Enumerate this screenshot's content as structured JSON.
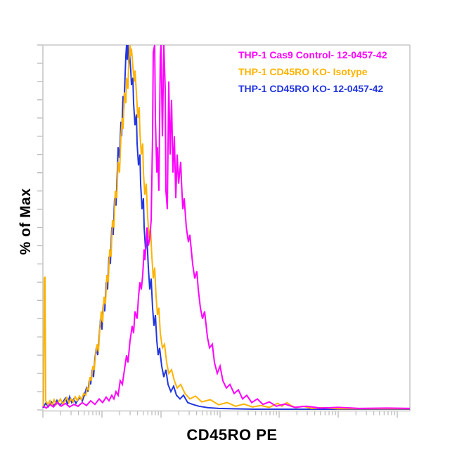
{
  "legend": {
    "entries": [
      {
        "label": "THP-1 Cas9 Control- 12-0457-42",
        "color": "#FF00FF"
      },
      {
        "label": "THP-1 CD45RO KO- Isotype",
        "color": "#FFB300"
      },
      {
        "label": "THP-1 CD45RO KO- 12-0457-42",
        "color": "#2336E0"
      }
    ]
  },
  "chart_data": {
    "type": "line",
    "subtype": "flow-cytometry-overlay-histogram",
    "title": "",
    "xlabel": "CD45RO PE",
    "ylabel": "% of Max",
    "x_axis": {
      "scale": "log",
      "visible_decades": 6.214,
      "tick_labels_shown": false,
      "note": "unlabeled log axis; point x-units are pixels from axis origin, one decade = 84 units"
    },
    "y_axis": {
      "min": 0,
      "max": 100,
      "tick_count": 21,
      "tick_labels_shown": false,
      "units": "% of Max"
    },
    "grid": false,
    "legend_position": "top-right-inside",
    "axis_color": "#c8c8c8",
    "tick_color": "#bdbdbd",
    "series": [
      {
        "name": "THP-1 CD45RO KO- 12-0457-42",
        "color": "#2336E0",
        "points": [
          [
            0,
            0.6
          ],
          [
            4,
            1.8
          ],
          [
            8,
            0.9
          ],
          [
            12,
            2.2
          ],
          [
            16,
            1.1
          ],
          [
            20,
            2.6
          ],
          [
            24,
            1.3
          ],
          [
            28,
            2.0
          ],
          [
            32,
            3.2
          ],
          [
            35,
            1.6
          ],
          [
            38,
            3.6
          ],
          [
            41,
            2.0
          ],
          [
            44,
            3.0
          ],
          [
            47,
            1.8
          ],
          [
            50,
            2.8
          ],
          [
            53,
            3.4
          ],
          [
            56,
            2.4
          ],
          [
            59,
            4
          ],
          [
            62,
            6
          ],
          [
            64,
            5
          ],
          [
            66,
            8
          ],
          [
            68,
            7
          ],
          [
            70,
            11
          ],
          [
            72,
            9
          ],
          [
            74,
            14
          ],
          [
            76,
            17
          ],
          [
            78,
            15
          ],
          [
            80,
            20
          ],
          [
            82,
            25
          ],
          [
            84,
            22
          ],
          [
            86,
            29
          ],
          [
            88,
            27
          ],
          [
            90,
            35
          ],
          [
            92,
            33
          ],
          [
            94,
            42
          ],
          [
            96,
            40
          ],
          [
            98,
            50
          ],
          [
            100,
            48
          ],
          [
            102,
            58
          ],
          [
            104,
            56
          ],
          [
            106,
            66
          ],
          [
            107,
            72
          ],
          [
            109,
            69
          ],
          [
            111,
            79
          ],
          [
            112,
            75
          ],
          [
            114,
            86
          ],
          [
            115,
            82
          ],
          [
            117,
            92
          ],
          [
            118,
            97
          ],
          [
            119,
            100
          ],
          [
            120,
            96
          ],
          [
            121,
            100
          ],
          [
            122,
            95
          ],
          [
            123,
            98
          ],
          [
            125,
            93
          ],
          [
            126,
            89
          ],
          [
            128,
            91
          ],
          [
            129,
            84
          ],
          [
            131,
            78
          ],
          [
            133,
            81
          ],
          [
            134,
            73
          ],
          [
            136,
            67
          ],
          [
            138,
            70
          ],
          [
            139,
            62
          ],
          [
            141,
            55
          ],
          [
            143,
            58
          ],
          [
            144,
            50
          ],
          [
            146,
            44
          ],
          [
            148,
            47
          ],
          [
            150,
            39
          ],
          [
            152,
            33
          ],
          [
            154,
            36
          ],
          [
            156,
            28
          ],
          [
            158,
            23
          ],
          [
            160,
            26
          ],
          [
            162,
            19
          ],
          [
            164,
            15
          ],
          [
            166,
            17
          ],
          [
            169,
            12
          ],
          [
            172,
            9
          ],
          [
            175,
            11
          ],
          [
            178,
            7
          ],
          [
            182,
            5
          ],
          [
            186,
            6.5
          ],
          [
            190,
            4
          ],
          [
            195,
            3
          ],
          [
            200,
            4
          ],
          [
            206,
            2
          ],
          [
            213,
            1.5
          ],
          [
            222,
            1
          ],
          [
            235,
            0.6
          ],
          [
            250,
            0.4
          ],
          [
            270,
            0.3
          ],
          [
            300,
            0.2
          ],
          [
            522,
            0.2
          ]
        ]
      },
      {
        "name": "THP-1 CD45RO KO- Isotype",
        "color": "#FFB300",
        "points": [
          [
            0,
            1.2
          ],
          [
            1,
            1
          ],
          [
            2,
            36
          ],
          [
            3,
            36.5
          ],
          [
            4,
            2.5
          ],
          [
            7,
            1.5
          ],
          [
            10,
            2.5
          ],
          [
            13,
            1.2
          ],
          [
            16,
            2.8
          ],
          [
            19,
            1.5
          ],
          [
            22,
            2.2
          ],
          [
            25,
            3
          ],
          [
            28,
            1.6
          ],
          [
            31,
            2.4
          ],
          [
            34,
            3.4
          ],
          [
            37,
            2
          ],
          [
            40,
            3
          ],
          [
            43,
            2.2
          ],
          [
            46,
            3.6
          ],
          [
            49,
            2.6
          ],
          [
            52,
            3.8
          ],
          [
            55,
            2.8
          ],
          [
            58,
            4.5
          ],
          [
            61,
            4
          ],
          [
            63,
            6
          ],
          [
            65,
            5.5
          ],
          [
            67,
            9
          ],
          [
            69,
            8
          ],
          [
            71,
            12
          ],
          [
            73,
            11
          ],
          [
            75,
            15
          ],
          [
            77,
            18
          ],
          [
            79,
            16
          ],
          [
            81,
            22
          ],
          [
            83,
            27
          ],
          [
            85,
            24
          ],
          [
            87,
            31
          ],
          [
            89,
            29
          ],
          [
            91,
            37
          ],
          [
            93,
            35
          ],
          [
            95,
            44
          ],
          [
            97,
            42
          ],
          [
            99,
            52
          ],
          [
            101,
            50
          ],
          [
            103,
            60
          ],
          [
            105,
            58
          ],
          [
            107,
            68
          ],
          [
            109,
            65
          ],
          [
            111,
            75
          ],
          [
            113,
            80
          ],
          [
            114,
            77
          ],
          [
            116,
            87
          ],
          [
            118,
            84
          ],
          [
            119,
            91
          ],
          [
            121,
            88
          ],
          [
            122,
            95
          ],
          [
            124,
            100
          ],
          [
            125,
            97
          ],
          [
            126,
            99
          ],
          [
            128,
            94
          ],
          [
            130,
            90
          ],
          [
            131,
            93
          ],
          [
            133,
            87
          ],
          [
            135,
            80
          ],
          [
            137,
            83
          ],
          [
            138,
            76
          ],
          [
            140,
            70
          ],
          [
            142,
            73
          ],
          [
            143,
            65
          ],
          [
            145,
            59
          ],
          [
            147,
            62
          ],
          [
            149,
            53
          ],
          [
            151,
            47
          ],
          [
            153,
            50
          ],
          [
            155,
            42
          ],
          [
            157,
            36
          ],
          [
            159,
            39
          ],
          [
            161,
            31
          ],
          [
            163,
            26
          ],
          [
            165,
            28
          ],
          [
            167,
            21
          ],
          [
            170,
            17
          ],
          [
            173,
            18
          ],
          [
            176,
            13
          ],
          [
            179,
            10
          ],
          [
            183,
            11
          ],
          [
            187,
            8
          ],
          [
            191,
            6
          ],
          [
            196,
            7
          ],
          [
            202,
            4.5
          ],
          [
            209,
            3
          ],
          [
            217,
            3.8
          ],
          [
            226,
            2.2
          ],
          [
            238,
            2.8
          ],
          [
            250,
            1.4
          ],
          [
            262,
            2
          ],
          [
            274,
            1
          ],
          [
            286,
            1.6
          ],
          [
            298,
            0.8
          ],
          [
            310,
            1.2
          ],
          [
            322,
            0.7
          ],
          [
            334,
            1.8
          ],
          [
            340,
            1
          ],
          [
            347,
            2
          ],
          [
            353,
            1.2
          ],
          [
            360,
            0.6
          ],
          [
            370,
            1
          ],
          [
            382,
            0.4
          ],
          [
            398,
            0.6
          ],
          [
            420,
            0.3
          ],
          [
            522,
            0.3
          ]
        ]
      },
      {
        "name": "THP-1 Cas9 Control- 12-0457-42",
        "color": "#FF00FF",
        "points": [
          [
            0,
            1
          ],
          [
            5,
            0.5
          ],
          [
            10,
            1.5
          ],
          [
            15,
            0.8
          ],
          [
            20,
            2
          ],
          [
            26,
            1
          ],
          [
            32,
            1.8
          ],
          [
            38,
            0.8
          ],
          [
            44,
            1.5
          ],
          [
            50,
            1
          ],
          [
            56,
            2
          ],
          [
            62,
            1.2
          ],
          [
            68,
            2.5
          ],
          [
            74,
            1.5
          ],
          [
            80,
            3
          ],
          [
            85,
            2
          ],
          [
            90,
            3.5
          ],
          [
            94,
            2.5
          ],
          [
            98,
            4
          ],
          [
            101,
            3
          ],
          [
            104,
            5
          ],
          [
            107,
            4
          ],
          [
            110,
            8
          ],
          [
            113,
            7
          ],
          [
            116,
            11
          ],
          [
            119,
            15
          ],
          [
            121,
            13
          ],
          [
            124,
            19
          ],
          [
            127,
            23
          ],
          [
            129,
            21
          ],
          [
            131,
            27
          ],
          [
            134,
            25
          ],
          [
            136,
            31
          ],
          [
            138,
            35
          ],
          [
            140,
            33
          ],
          [
            142,
            37
          ],
          [
            144,
            44
          ],
          [
            145,
            41
          ],
          [
            147,
            46
          ],
          [
            148,
            50
          ],
          [
            150,
            45
          ],
          [
            152,
            47
          ],
          [
            154,
            52
          ],
          [
            156,
            75
          ],
          [
            157,
            98
          ],
          [
            159,
            100
          ],
          [
            160,
            80
          ],
          [
            162,
            65
          ],
          [
            163,
            72
          ],
          [
            165,
            60
          ],
          [
            167,
            97
          ],
          [
            168,
            100
          ],
          [
            170,
            75
          ],
          [
            172,
            100
          ],
          [
            174,
            88
          ],
          [
            175,
            60
          ],
          [
            177,
            55
          ],
          [
            179,
            90
          ],
          [
            181,
            70
          ],
          [
            183,
            85
          ],
          [
            185,
            65
          ],
          [
            187,
            75
          ],
          [
            189,
            58
          ],
          [
            191,
            70
          ],
          [
            193,
            62
          ],
          [
            196,
            68
          ],
          [
            197,
            63
          ],
          [
            199,
            55
          ],
          [
            201,
            58
          ],
          [
            204,
            50
          ],
          [
            207,
            46
          ],
          [
            209,
            48
          ],
          [
            213,
            40
          ],
          [
            216,
            36
          ],
          [
            219,
            38
          ],
          [
            221,
            33
          ],
          [
            224,
            28
          ],
          [
            227,
            25
          ],
          [
            230,
            27
          ],
          [
            234,
            20
          ],
          [
            237,
            17
          ],
          [
            241,
            18
          ],
          [
            244,
            13
          ],
          [
            248,
            10
          ],
          [
            252,
            12
          ],
          [
            256,
            8
          ],
          [
            261,
            6
          ],
          [
            266,
            7
          ],
          [
            272,
            4.5
          ],
          [
            278,
            5.5
          ],
          [
            284,
            3
          ],
          [
            290,
            4
          ],
          [
            297,
            2
          ],
          [
            305,
            3
          ],
          [
            313,
            1.5
          ],
          [
            322,
            2.2
          ],
          [
            332,
            1
          ],
          [
            344,
            1.6
          ],
          [
            358,
            0.7
          ],
          [
            375,
            1
          ],
          [
            395,
            0.5
          ],
          [
            420,
            0.7
          ],
          [
            450,
            0.4
          ],
          [
            490,
            0.5
          ],
          [
            522,
            0.4
          ]
        ]
      }
    ]
  }
}
